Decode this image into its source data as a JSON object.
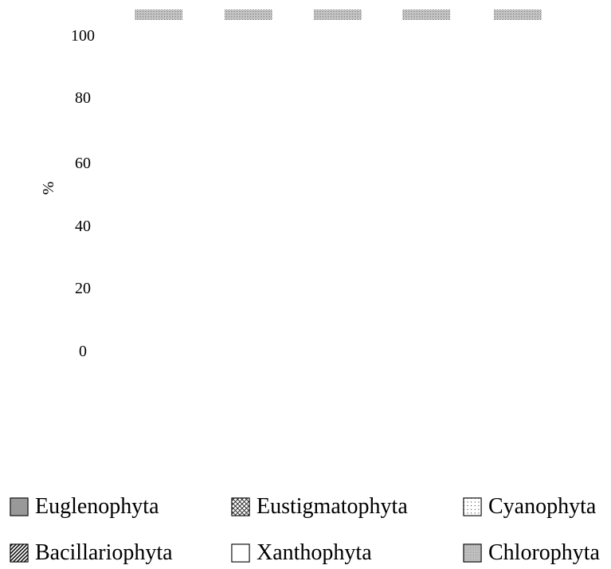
{
  "chart_data": {
    "type": "bar",
    "stacked": true,
    "categories": [
      "",
      "",
      "",
      "",
      ""
    ],
    "ylabel": "%",
    "ylim": [
      0,
      100
    ],
    "yticks": [
      0,
      20,
      40,
      60,
      80,
      100
    ],
    "series": [
      {
        "name": "Euglenophyta",
        "values": [
          0,
          0,
          0,
          0,
          0
        ],
        "pattern": "solid-gray",
        "color": "#999999"
      },
      {
        "name": "Eustigmatophyta",
        "values": [
          0,
          0,
          0,
          0,
          0
        ],
        "pattern": "crosshatch",
        "color": "#000000"
      },
      {
        "name": "Cyanophyta",
        "values": [
          0,
          0,
          0,
          0,
          0
        ],
        "pattern": "sparse-dots",
        "color": "#000000"
      },
      {
        "name": "Bacillariophyta",
        "values": [
          0,
          0,
          0,
          0,
          0
        ],
        "pattern": "diagonal-stripes",
        "color": "#000000"
      },
      {
        "name": "Xanthophyta",
        "values": [
          0,
          0,
          0,
          0,
          0
        ],
        "pattern": "empty",
        "color": "#ffffff"
      },
      {
        "name": "Chlorophyta",
        "values": [
          100,
          100,
          100,
          100,
          100
        ],
        "pattern": "dense-dots",
        "color": "#000000"
      }
    ],
    "legend_position": "bottom",
    "grid": false
  }
}
